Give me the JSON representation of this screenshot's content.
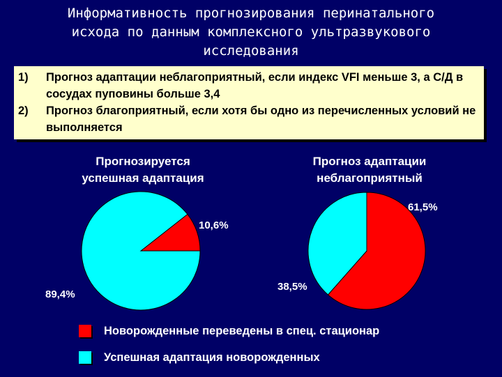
{
  "title": {
    "lines": [
      "Информативность прогнозирования перинатального",
      "исхода по данным комплексного ультразвукового",
      "исследования"
    ]
  },
  "notes": [
    {
      "num": "1)",
      "text": "Прогноз адаптации неблагоприятный, если индекс VFI меньше 3, а С/Д в сосудах пуповины больше 3,4"
    },
    {
      "num": "2)",
      "text": "Прогноз благоприятный, если хотя бы одно из перечисленных условий не выполняется"
    }
  ],
  "colors": {
    "red": "#ff0000",
    "cyan": "#00ffff"
  },
  "chart_data": [
    {
      "type": "pie",
      "title": "Прогнозируется\nуспешная адаптация",
      "slices": [
        {
          "label": "Новорожденные переведены в спец. стационар",
          "value": 10.6,
          "text": "10,6%",
          "color": "#ff0000"
        },
        {
          "label": "Успешная адаптация новорожденных",
          "value": 89.4,
          "text": "89,4%",
          "color": "#00ffff"
        }
      ]
    },
    {
      "type": "pie",
      "title": "Прогноз адаптации\nнеблагоприятный",
      "slices": [
        {
          "label": "Новорожденные переведены в спец. стационар",
          "value": 61.5,
          "text": "61,5%",
          "color": "#ff0000"
        },
        {
          "label": "Успешная адаптация новорожденных",
          "value": 38.5,
          "text": "38,5%",
          "color": "#00ffff"
        }
      ]
    }
  ],
  "legend": [
    {
      "label": "Новорожденные переведены в спец. стационар",
      "color": "#ff0000"
    },
    {
      "label": "Успешная адаптация новорожденных",
      "color": "#00ffff"
    }
  ]
}
